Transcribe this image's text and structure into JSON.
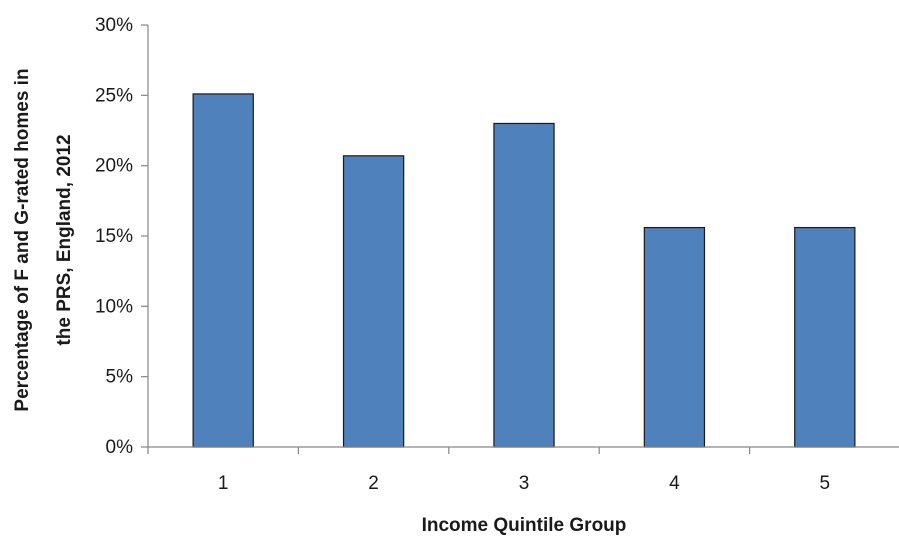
{
  "chart_data": {
    "type": "bar",
    "categories": [
      "1",
      "2",
      "3",
      "4",
      "5"
    ],
    "values": [
      0.251,
      0.207,
      0.23,
      0.156,
      0.156
    ],
    "xlabel": "Income Quintile Group",
    "ylabel_lines": [
      "Percentage of F and G-rated homes in",
      "the PRS, England, 2012"
    ],
    "ylim": [
      0,
      0.3
    ],
    "yticks": [
      "0%",
      "5%",
      "10%",
      "15%",
      "20%",
      "25%",
      "30%"
    ],
    "grid": false,
    "legend": "none",
    "colors": {
      "bar": "#4f81bd",
      "axis": "#868686",
      "text": "#1a1a1a"
    }
  }
}
